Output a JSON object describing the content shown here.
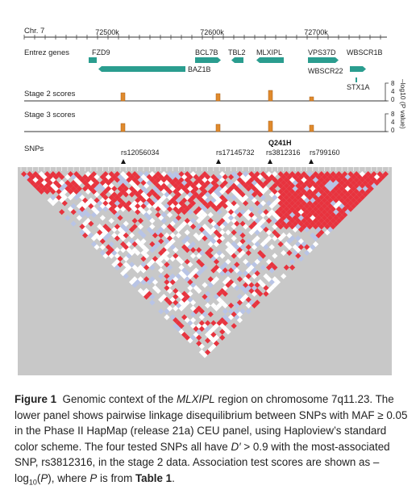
{
  "figure": {
    "chromosome": "Chr. 7",
    "ticks": [
      "72500k",
      "72600k",
      "72700k"
    ],
    "tracks": {
      "genes": "Entrez genes",
      "stage2": "Stage 2 scores",
      "stage3": "Stage 3 scores",
      "snps": "SNPs"
    },
    "genes": [
      {
        "name": "FZD9",
        "strand": "none"
      },
      {
        "name": "BAZ1B",
        "strand": "left"
      },
      {
        "name": "BCL7B",
        "strand": "right"
      },
      {
        "name": "TBL2",
        "strand": "left"
      },
      {
        "name": "MLXIPL",
        "strand": "left"
      },
      {
        "name": "VPS37D",
        "strand": "right"
      },
      {
        "name": "WBSCR1B",
        "strand": "none"
      },
      {
        "name": "WBSCR22",
        "strand": "right"
      },
      {
        "name": "STX1A",
        "strand": "none"
      }
    ],
    "scale_ticks": [
      "8",
      "4",
      "0"
    ],
    "scale_label": "–log10 (P value)",
    "snps": [
      {
        "id": "rs12056034",
        "bold": false
      },
      {
        "id": "rs17145732",
        "bold": false
      },
      {
        "id": "rs3812316",
        "bold": false
      },
      {
        "id": "rs799160",
        "bold": false
      }
    ],
    "variant": "Q241H",
    "colors": {
      "gene": "#2a9d8f",
      "score": "#e08a2c",
      "ld_strong": "#e8333e",
      "ld_weak": "#b8c4e6",
      "ld_none": "#ffffff",
      "panel_bg": "#c8c8c8"
    }
  },
  "caption": {
    "label": "Figure 1",
    "p1": "Genomic context of the ",
    "gene": "MLXIPL",
    "p2": " region on chromosome 7q11.23. The lower panel shows pairwise linkage disequilibrium between SNPs with MAF ≥ 0.05 in the Phase II HapMap (release 21a) CEU panel, using Haploview’s standard color scheme. The four tested SNPs all have ",
    "dprime": "D′",
    "p3": " > 0.9 with the most-associated SNP, rs3812316, in the stage 2 data. Association test scores are shown as –log",
    "sub10": "10",
    "p4": "(",
    "pvar": "P",
    "p5": "), where ",
    "pvar2": "P",
    "p6": " is from ",
    "table_ref": "Table 1",
    "p7": "."
  }
}
